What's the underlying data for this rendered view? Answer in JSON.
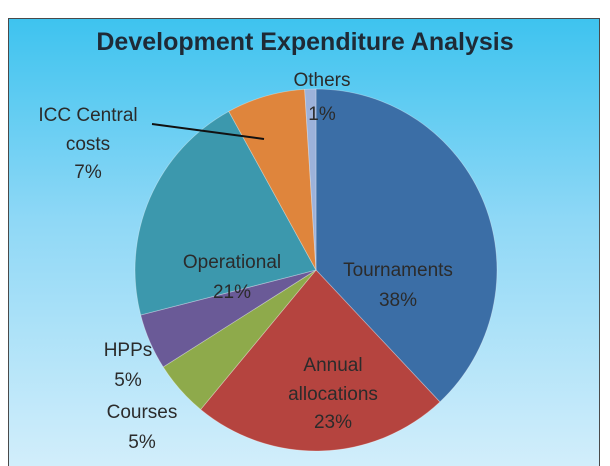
{
  "chart_data": {
    "type": "pie",
    "title": "Development Expenditure Analysis",
    "categories": [
      "Tournaments",
      "Annual allocations",
      "Courses",
      "HPPs",
      "Operational",
      "ICC Central costs",
      "Others"
    ],
    "values": [
      38,
      23,
      5,
      5,
      21,
      7,
      1
    ],
    "value_labels": [
      "38%",
      "23%",
      "5%",
      "5%",
      "21%",
      "7%",
      "1%"
    ],
    "colors": [
      "#3b6ea6",
      "#b5443f",
      "#8eaa4b",
      "#6a5a97",
      "#3c98ad",
      "#df853c",
      "#9db2da"
    ]
  }
}
